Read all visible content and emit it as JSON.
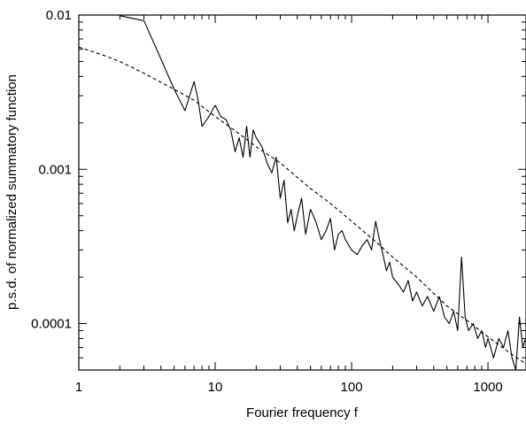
{
  "chart_data": {
    "type": "line",
    "title": "",
    "xlabel": "Fourier frequency f",
    "ylabel": "p.s.d. of normalized summatory function",
    "x_scale": "log",
    "y_scale": "log",
    "xlim": [
      1,
      1900
    ],
    "ylim": [
      5e-05,
      0.01
    ],
    "x_ticks": [
      {
        "value": 1,
        "label": "1"
      },
      {
        "value": 10,
        "label": "10"
      },
      {
        "value": 100,
        "label": "100"
      },
      {
        "value": 1000,
        "label": "1000"
      }
    ],
    "y_ticks": [
      {
        "value": 0.01,
        "label": "0.01"
      },
      {
        "value": 0.001,
        "label": "0.001"
      },
      {
        "value": 0.0001,
        "label": "0.0001"
      }
    ],
    "grid": false,
    "series": [
      {
        "style": "solid",
        "color": "#000000",
        "x": [
          2,
          3,
          4,
          5,
          6,
          7,
          7.5,
          8,
          9,
          10,
          11,
          12,
          13,
          14,
          15,
          16,
          17,
          18,
          19,
          20,
          22,
          24,
          26,
          28,
          30,
          32,
          34,
          36,
          38,
          40,
          43,
          46,
          50,
          55,
          60,
          65,
          70,
          75,
          80,
          85,
          90,
          100,
          110,
          120,
          130,
          140,
          150,
          160,
          170,
          180,
          190,
          200,
          220,
          240,
          260,
          280,
          300,
          330,
          360,
          400,
          440,
          480,
          520,
          560,
          600,
          640,
          680,
          720,
          780,
          840,
          900,
          960,
          1000,
          1100,
          1200,
          1300,
          1400,
          1500,
          1600,
          1700,
          1800,
          1900
        ],
        "y": [
          0.0099,
          0.0092,
          0.0052,
          0.0033,
          0.0024,
          0.0037,
          0.0028,
          0.0019,
          0.0022,
          0.0026,
          0.0022,
          0.0021,
          0.0018,
          0.0013,
          0.0016,
          0.0012,
          0.0019,
          0.0012,
          0.0018,
          0.0016,
          0.0014,
          0.0011,
          0.00095,
          0.0012,
          0.00065,
          0.00085,
          0.00045,
          0.00055,
          0.0004,
          0.0005,
          0.00065,
          0.00038,
          0.00055,
          0.00045,
          0.00035,
          0.0004,
          0.00048,
          0.0003,
          0.00038,
          0.0004,
          0.00035,
          0.0003,
          0.00028,
          0.00032,
          0.00035,
          0.0003,
          0.00046,
          0.00035,
          0.00028,
          0.00022,
          0.00025,
          0.0002,
          0.00018,
          0.00016,
          0.00019,
          0.00014,
          0.00016,
          0.00013,
          0.00015,
          0.00012,
          0.00015,
          0.00011,
          0.0001,
          0.00012,
          9e-05,
          0.00027,
          0.00011,
          9e-05,
          0.0001,
          8e-05,
          9e-05,
          7e-05,
          8e-05,
          6e-05,
          8e-05,
          7e-05,
          9e-05,
          6e-05,
          5e-05,
          0.00011,
          7e-05,
          8e-05
        ]
      },
      {
        "style": "dashed",
        "color": "#000000",
        "x": [
          1,
          1.5,
          2,
          3,
          5,
          7,
          10,
          15,
          20,
          30,
          50,
          70,
          100,
          150,
          200,
          300,
          500,
          700,
          1000,
          1500,
          1900
        ],
        "y": [
          0.0062,
          0.0055,
          0.005,
          0.0042,
          0.0033,
          0.0028,
          0.0022,
          0.0017,
          0.0014,
          0.0011,
          0.00075,
          0.0006,
          0.00046,
          0.00034,
          0.00027,
          0.0002,
          0.00013,
          0.000105,
          8.2e-05,
          6.3e-05,
          5.5e-05
        ]
      }
    ]
  }
}
